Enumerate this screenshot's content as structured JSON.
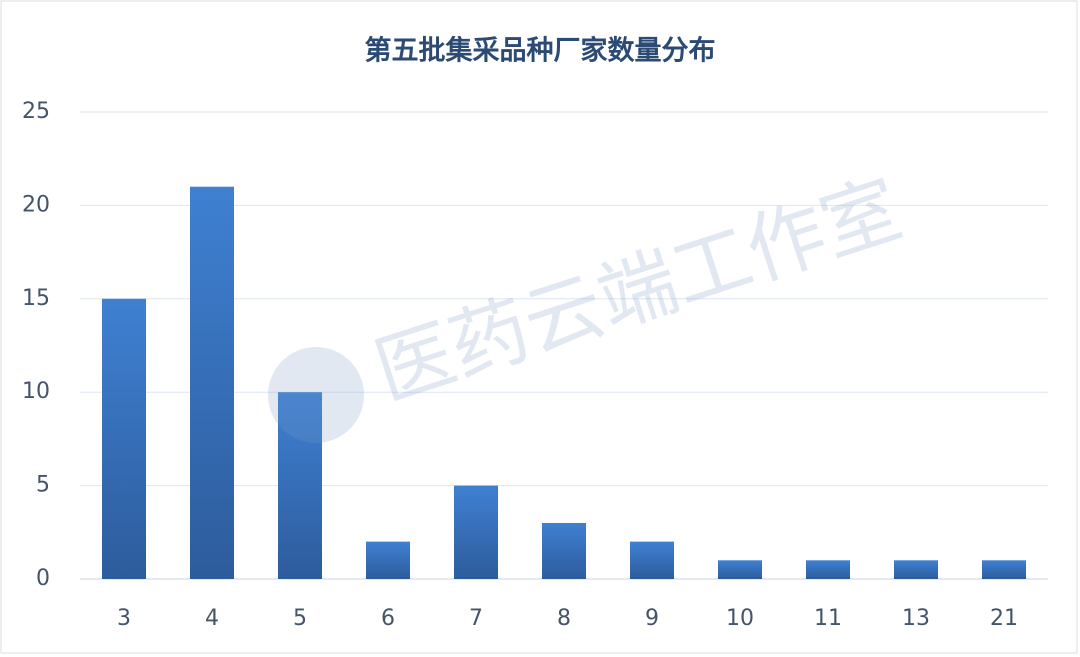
{
  "chart_data": {
    "type": "bar",
    "title": "第五批集采品种厂家数量分布",
    "watermark": "医药云端工作室",
    "categories": [
      "3",
      "4",
      "5",
      "6",
      "7",
      "8",
      "9",
      "10",
      "11",
      "13",
      "21"
    ],
    "values": [
      15,
      21,
      10,
      2,
      5,
      3,
      2,
      1,
      1,
      1,
      1
    ],
    "color": "#3a74c2",
    "ylim": [
      0,
      25
    ],
    "yticks": [
      0,
      5,
      10,
      15,
      20,
      25
    ],
    "grid": true
  }
}
